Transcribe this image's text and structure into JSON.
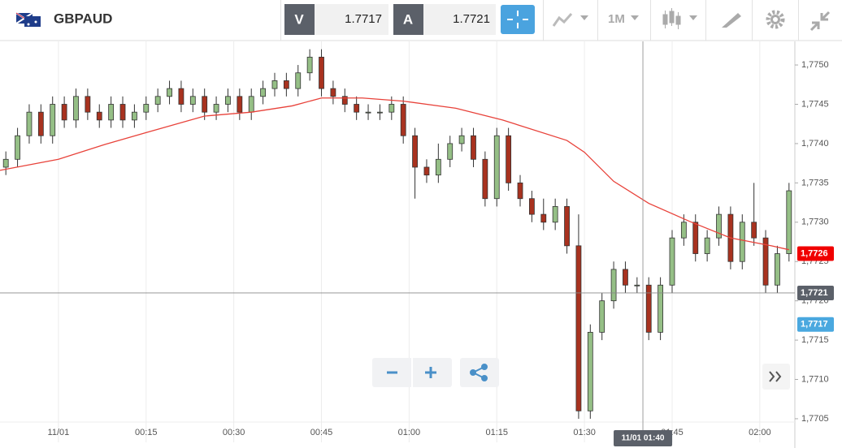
{
  "toolbar": {
    "symbol": "GBPAUD",
    "bid_label": "V",
    "bid": "1.7717",
    "ask_label": "A",
    "ask": "1.7721",
    "timeframe": "1M"
  },
  "chart_data": {
    "type": "candlestick",
    "x": [
      -9,
      -7,
      -5,
      -3,
      -1,
      1,
      3,
      5,
      7,
      9,
      11,
      13,
      15,
      17,
      19,
      21,
      23,
      25,
      27,
      29,
      31,
      33,
      35,
      37,
      39,
      41,
      43,
      45,
      47,
      49,
      51,
      53,
      55,
      57,
      59,
      61,
      63,
      65,
      67,
      69,
      71,
      73,
      75,
      77,
      79,
      81,
      83,
      85,
      87,
      89,
      91,
      93,
      95,
      97,
      99,
      101,
      103,
      105,
      107,
      109,
      111,
      113,
      115,
      117,
      119,
      121,
      123,
      125
    ],
    "open": [
      1.7737,
      1.7738,
      1.7741,
      1.7744,
      1.7741,
      1.7745,
      1.7743,
      1.7746,
      1.7744,
      1.7743,
      1.7745,
      1.7743,
      1.7744,
      1.7745,
      1.7746,
      1.7747,
      1.7745,
      1.7746,
      1.7744,
      1.7745,
      1.7746,
      1.7744,
      1.7746,
      1.7747,
      1.7748,
      1.7747,
      1.7749,
      1.7751,
      1.7747,
      1.7746,
      1.7745,
      1.7744,
      1.7744,
      1.7744,
      1.7745,
      1.7741,
      1.7737,
      1.7736,
      1.7738,
      1.774,
      1.7741,
      1.7738,
      1.7733,
      1.7741,
      1.7735,
      1.7733,
      1.7731,
      1.773,
      1.7732,
      1.7727,
      1.7706,
      1.7716,
      1.772,
      1.7724,
      1.7722,
      1.7722,
      1.7716,
      1.7722,
      1.7728,
      1.773,
      1.7726,
      1.7728,
      1.7731,
      1.7725,
      1.773,
      1.7728,
      1.7722,
      1.7726
    ],
    "high": [
      1.7739,
      1.7742,
      1.7745,
      1.7745,
      1.7746,
      1.7746,
      1.7747,
      1.7747,
      1.7745,
      1.7746,
      1.7746,
      1.7745,
      1.7746,
      1.7747,
      1.7748,
      1.7748,
      1.7747,
      1.7747,
      1.7746,
      1.7747,
      1.7747,
      1.7747,
      1.7748,
      1.7749,
      1.7749,
      1.775,
      1.7752,
      1.7752,
      1.7748,
      1.7747,
      1.7746,
      1.7745,
      1.7745,
      1.7746,
      1.7746,
      1.7742,
      1.7738,
      1.774,
      1.7741,
      1.7742,
      1.7742,
      1.7739,
      1.7742,
      1.7742,
      1.7736,
      1.7734,
      1.7733,
      1.7733,
      1.7733,
      1.7731,
      1.7717,
      1.7721,
      1.7725,
      1.7725,
      1.7723,
      1.7723,
      1.7723,
      1.7729,
      1.7731,
      1.7731,
      1.7729,
      1.7732,
      1.7732,
      1.7731,
      1.7735,
      1.7729,
      1.7727,
      1.7735
    ],
    "low": [
      1.7736,
      1.7737,
      1.774,
      1.774,
      1.774,
      1.7742,
      1.7742,
      1.7743,
      1.7742,
      1.7742,
      1.7742,
      1.7742,
      1.7743,
      1.7744,
      1.7745,
      1.7744,
      1.7744,
      1.7743,
      1.7743,
      1.7744,
      1.7743,
      1.7743,
      1.7745,
      1.7746,
      1.7746,
      1.7746,
      1.7748,
      1.7746,
      1.7745,
      1.7744,
      1.7743,
      1.7743,
      1.7743,
      1.7743,
      1.774,
      1.7733,
      1.7735,
      1.7735,
      1.7737,
      1.7739,
      1.7737,
      1.7732,
      1.7732,
      1.7734,
      1.7732,
      1.773,
      1.7729,
      1.7729,
      1.7726,
      1.7705,
      1.7705,
      1.7715,
      1.7719,
      1.7721,
      1.7721,
      1.7715,
      1.7715,
      1.7721,
      1.7727,
      1.7725,
      1.7725,
      1.7727,
      1.7724,
      1.7724,
      1.7727,
      1.7721,
      1.7721,
      1.7725
    ],
    "close": [
      1.7738,
      1.7741,
      1.7744,
      1.7741,
      1.7745,
      1.7743,
      1.7746,
      1.7744,
      1.7743,
      1.7745,
      1.7743,
      1.7744,
      1.7745,
      1.7746,
      1.7747,
      1.7745,
      1.7746,
      1.7744,
      1.7745,
      1.7746,
      1.7744,
      1.7746,
      1.7747,
      1.7748,
      1.7747,
      1.7749,
      1.7751,
      1.7747,
      1.7746,
      1.7745,
      1.7744,
      1.7744,
      1.7744,
      1.7745,
      1.7741,
      1.7737,
      1.7736,
      1.7738,
      1.774,
      1.7741,
      1.7738,
      1.7733,
      1.7741,
      1.7735,
      1.7733,
      1.7731,
      1.773,
      1.7732,
      1.7727,
      1.7706,
      1.7716,
      1.772,
      1.7724,
      1.7722,
      1.7722,
      1.7716,
      1.7722,
      1.7728,
      1.773,
      1.7726,
      1.7728,
      1.7731,
      1.7725,
      1.773,
      1.7728,
      1.7722,
      1.7726,
      1.7734
    ],
    "up_color": "#95bf86",
    "down_color": "#a8321f",
    "moving_average": {
      "color": "#e8423a",
      "x": [
        -10,
        0,
        8,
        15,
        25,
        33,
        40,
        45,
        52,
        59,
        68,
        76,
        87,
        90,
        95,
        101,
        108,
        115,
        122,
        125
      ],
      "values": [
        1.77366,
        1.7738,
        1.77399,
        1.77414,
        1.77435,
        1.7744,
        1.77448,
        1.77458,
        1.77458,
        1.77454,
        1.77445,
        1.7743,
        1.77404,
        1.77389,
        1.77352,
        1.77324,
        1.77301,
        1.7728,
        1.7727,
        1.77265
      ]
    },
    "xlim": [
      -10,
      126
    ],
    "xticks": [
      {
        "value": 0,
        "label": "11/01"
      },
      {
        "value": 15,
        "label": "00:15"
      },
      {
        "value": 30,
        "label": "00:30"
      },
      {
        "value": 45,
        "label": "00:45"
      },
      {
        "value": 60,
        "label": "01:00"
      },
      {
        "value": 75,
        "label": "01:15"
      },
      {
        "value": 90,
        "label": "01:30"
      },
      {
        "value": 105,
        "label": "01:45"
      },
      {
        "value": 120,
        "label": "02:00"
      }
    ],
    "ylim": [
      1.7702,
      1.7753
    ],
    "yticks": [
      {
        "value": 1.7705,
        "label": "1,7705"
      },
      {
        "value": 1.771,
        "label": "1,7710"
      },
      {
        "value": 1.7715,
        "label": "1,7715"
      },
      {
        "value": 1.772,
        "label": "1,7720"
      },
      {
        "value": 1.7725,
        "label": "1,7725"
      },
      {
        "value": 1.773,
        "label": "1,7730"
      },
      {
        "value": 1.7735,
        "label": "1,7735"
      },
      {
        "value": 1.774,
        "label": "1,7740"
      },
      {
        "value": 1.7745,
        "label": "1,7745"
      },
      {
        "value": 1.775,
        "label": "1,7750"
      }
    ],
    "grid": "x",
    "price_tags": [
      {
        "value": 1.7726,
        "label": "1,7726",
        "color": "#f00000"
      },
      {
        "value": 1.7717,
        "label": "1,7717",
        "color": "#4aa8df"
      }
    ],
    "crosshair": {
      "x": 100,
      "x_label": "11/01 01:40",
      "y": 1.7721,
      "y_label": "1,7721"
    }
  }
}
